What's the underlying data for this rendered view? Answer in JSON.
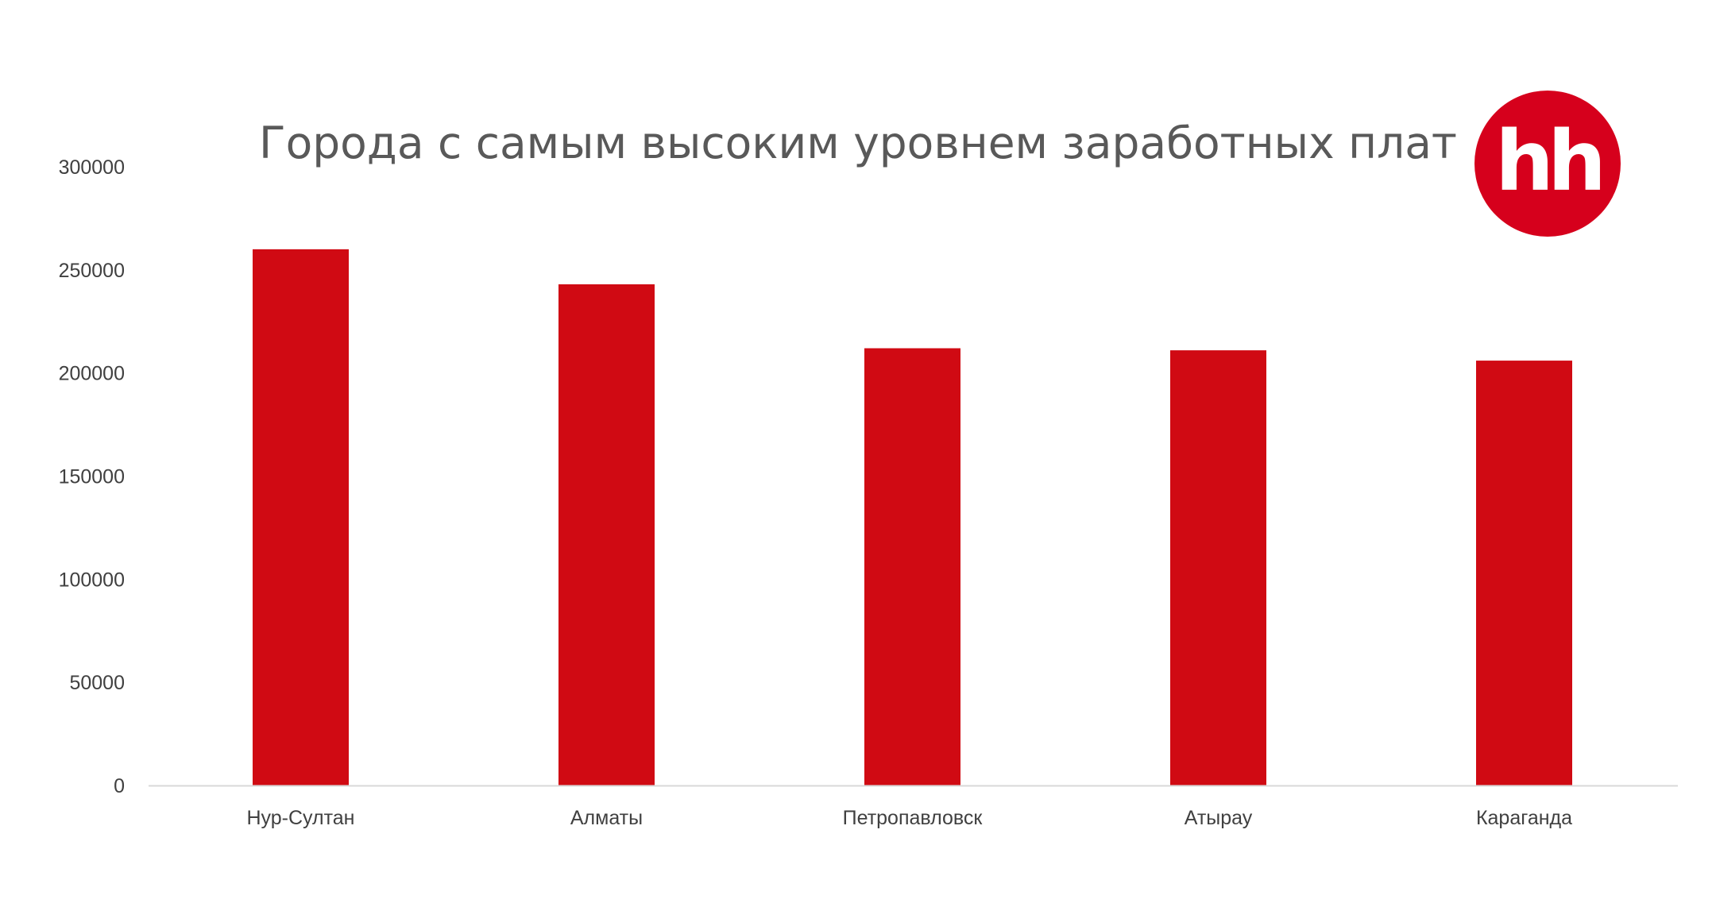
{
  "colors": {
    "bar": "#d00a13",
    "axis": "#d9d9d9",
    "tick_text": "#404040",
    "title_text": "#595959",
    "logo_bg": "#d6001c"
  },
  "logo": {
    "text": "hh"
  },
  "chart_data": {
    "type": "bar",
    "title": "Города с самым высоким уровнем заработных плат",
    "xlabel": "",
    "ylabel": "",
    "categories": [
      "Нур-Султан",
      "Алматы",
      "Петропавловск",
      "Атырау",
      "Караганда"
    ],
    "values": [
      260000,
      243000,
      212000,
      211000,
      206000
    ],
    "ylim": [
      0,
      300000
    ],
    "yticks": [
      0,
      50000,
      100000,
      150000,
      200000,
      250000,
      300000
    ],
    "ytick_labels": [
      "0",
      "50000",
      "100000",
      "150000",
      "200000",
      "250000",
      "300000"
    ],
    "grid": false,
    "legend": "none"
  }
}
